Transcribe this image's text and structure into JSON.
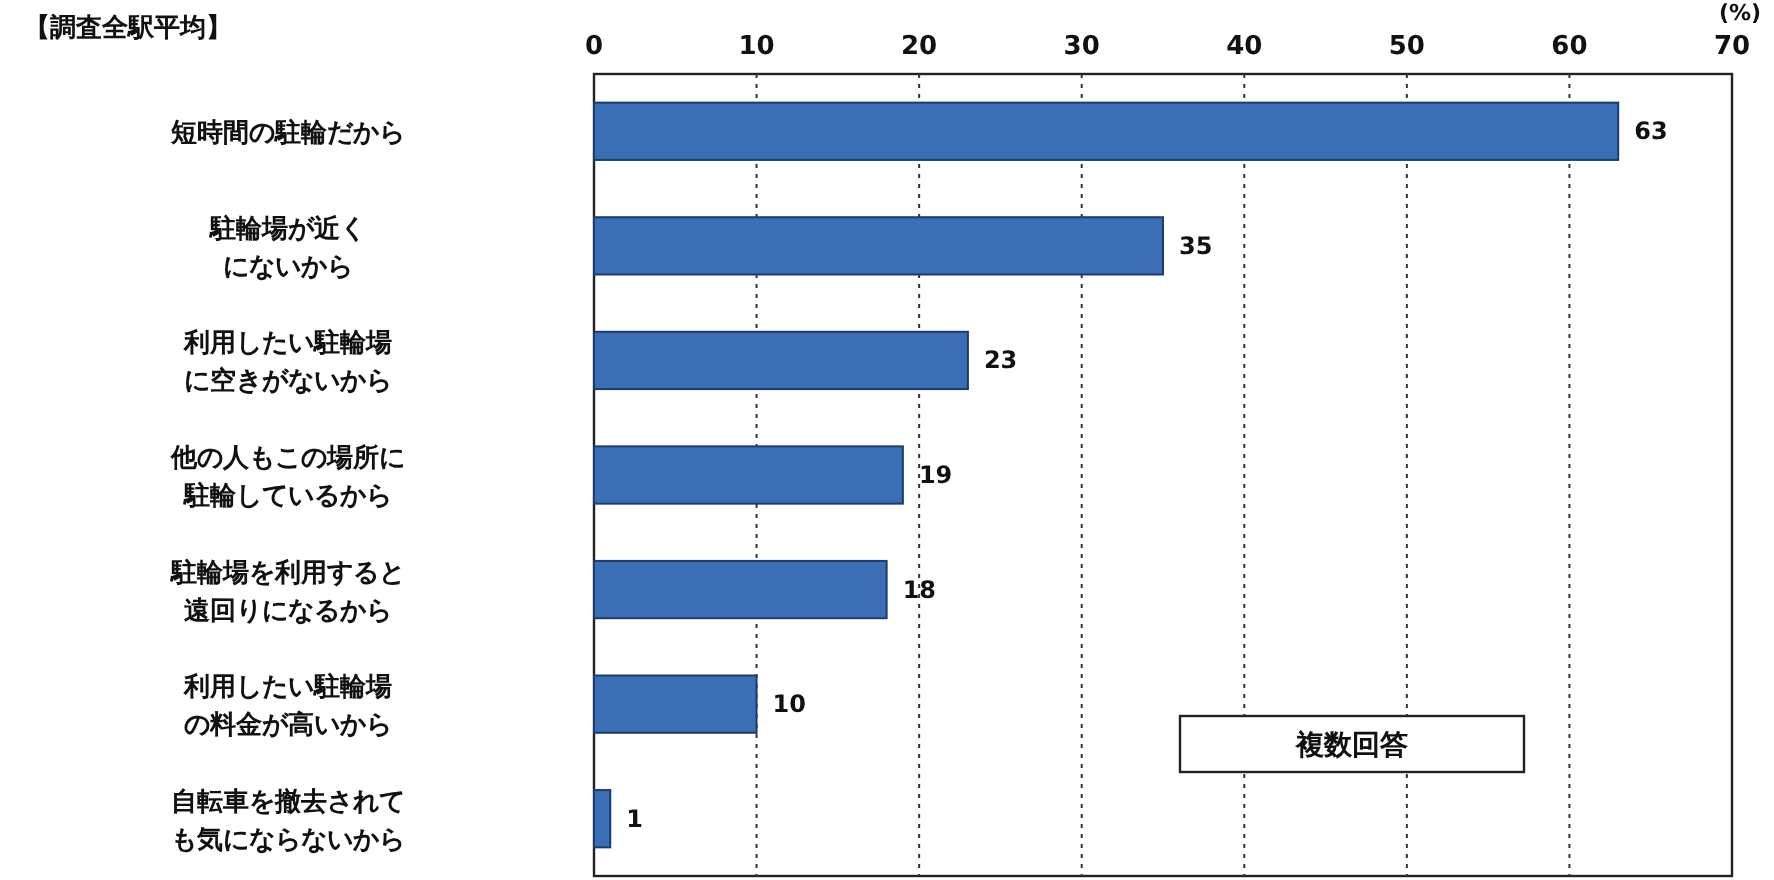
{
  "chart_data": {
    "type": "bar",
    "orientation": "horizontal",
    "title": "【調査全駅平均】",
    "xlabel": "(%)",
    "categories": [
      "短時間の駐輪だから",
      "駐輪場が近くにないから",
      "利用したい駐輪場に空きがないから",
      "他の人もこの場所に駐輪しているから",
      "駐輪場を利用すると遠回りになるから",
      "利用したい駐輪場の料金が高いから",
      "自転車を撤去されても気にならないから"
    ],
    "values": [
      63,
      35,
      23,
      19,
      18,
      10,
      1
    ],
    "color": "#3a6fb5",
    "xlim": [
      0,
      70
    ],
    "xticks": [
      0,
      10,
      20,
      30,
      40,
      50,
      60,
      70
    ],
    "grid": "x",
    "data_labels": true,
    "annotations": [
      "複数回答"
    ]
  }
}
